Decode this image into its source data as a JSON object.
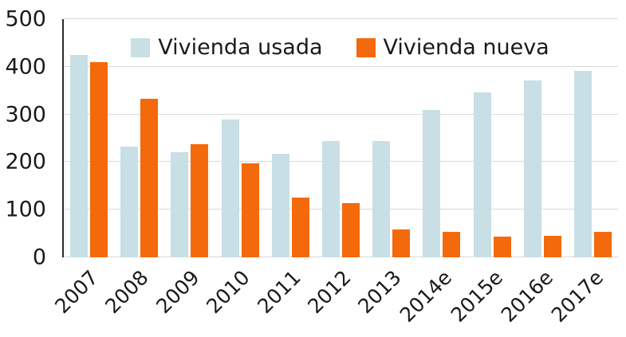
{
  "chart_data": {
    "type": "bar",
    "title": "",
    "xlabel": "",
    "ylabel": "",
    "categories": [
      "2007",
      "2008",
      "2009",
      "2010",
      "2011",
      "2012",
      "2013",
      "2014e",
      "2015e",
      "2016e",
      "2017e"
    ],
    "series": [
      {
        "name": "Vivienda usada",
        "color": "#c7dfe5",
        "values": [
          425,
          232,
          220,
          290,
          218,
          245,
          245,
          310,
          347,
          372,
          392
        ]
      },
      {
        "name": "Vivienda nueva",
        "color": "#f4690b",
        "values": [
          410,
          332,
          238,
          198,
          126,
          114,
          59,
          54,
          44,
          45,
          54
        ]
      }
    ],
    "ylim": [
      0,
      500
    ],
    "yticks": [
      0,
      100,
      200,
      300,
      400,
      500
    ],
    "grid": true,
    "legend_position": "top-center",
    "colors": {
      "axis_line": "#2b2b2b",
      "gridline": "#d9d9d9",
      "text": "#1a1a1a"
    }
  }
}
